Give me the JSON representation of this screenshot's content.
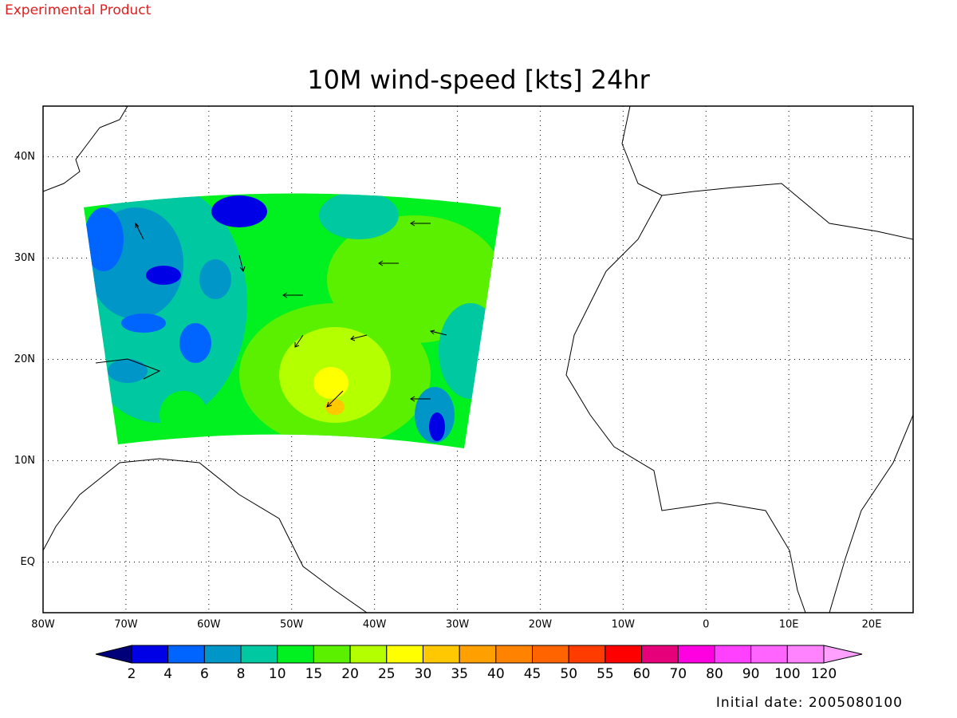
{
  "header": {
    "product_label": "Experimental Product"
  },
  "map": {
    "title": "10M wind-speed [kts] 24hr",
    "xlim": [
      -80,
      25
    ],
    "ylim": [
      -5,
      45
    ],
    "xticks": [
      {
        "value": -80,
        "label": "80W"
      },
      {
        "value": -70,
        "label": "70W"
      },
      {
        "value": -60,
        "label": "60W"
      },
      {
        "value": -50,
        "label": "50W"
      },
      {
        "value": -40,
        "label": "40W"
      },
      {
        "value": -30,
        "label": "30W"
      },
      {
        "value": -20,
        "label": "20W"
      },
      {
        "value": -10,
        "label": "10W"
      },
      0,
      {
        "value": 10,
        "label": "10E"
      },
      {
        "value": 20,
        "label": "20E"
      }
    ],
    "yticks": [
      {
        "value": 0,
        "label": "EQ"
      },
      {
        "value": 10,
        "label": "10N"
      },
      {
        "value": 20,
        "label": "20N"
      },
      {
        "value": 30,
        "label": "30N"
      },
      {
        "value": 40,
        "label": "40N"
      }
    ],
    "grid": true
  },
  "colorbar": {
    "levels": [
      2,
      4,
      6,
      8,
      10,
      15,
      20,
      25,
      30,
      35,
      40,
      45,
      50,
      55,
      60,
      70,
      80,
      90,
      100,
      120
    ],
    "colors": [
      "#00007a",
      "#0000e6",
      "#0064ff",
      "#0096c8",
      "#00c8a0",
      "#00f020",
      "#5af000",
      "#b4ff00",
      "#ffff00",
      "#ffc800",
      "#ffa000",
      "#ff8200",
      "#ff6400",
      "#ff3c00",
      "#ff0000",
      "#e6007a",
      "#ff00e0",
      "#ff40ff",
      "#ff64ff",
      "#ff82ff",
      "#ffa0ff"
    ]
  },
  "footer": {
    "initial_date": "Initial date: 2005080100"
  }
}
